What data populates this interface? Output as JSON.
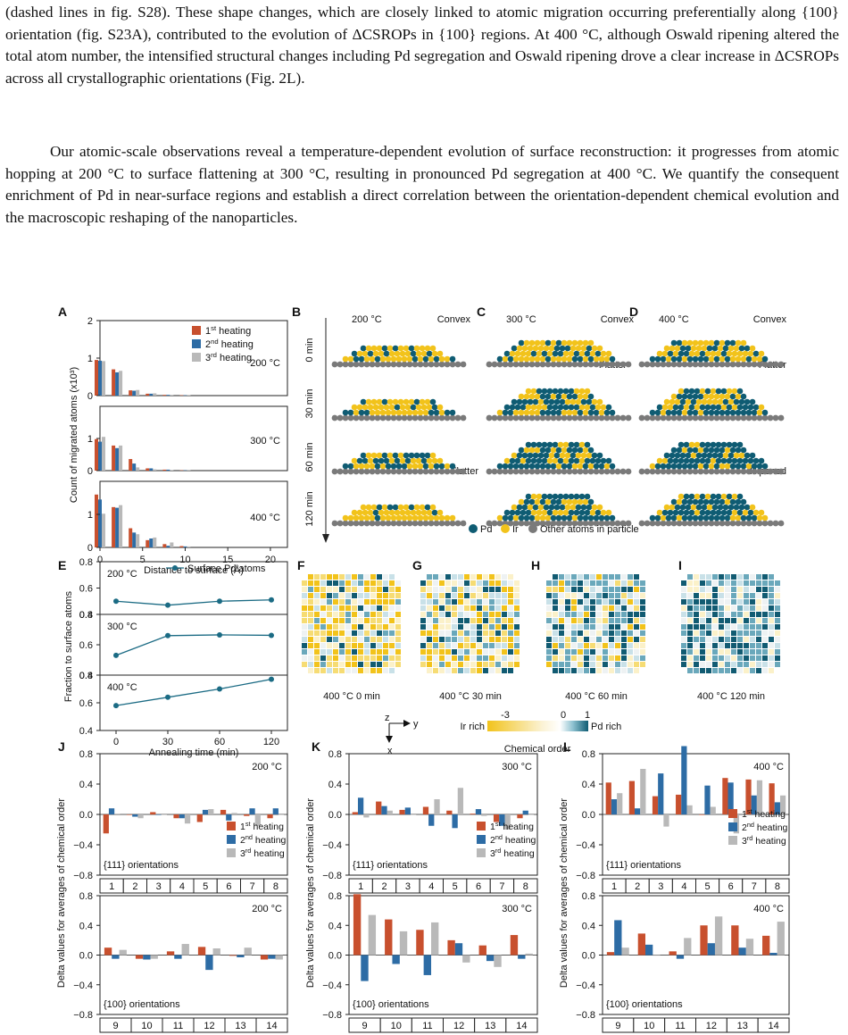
{
  "text": {
    "paragraph1": "(dashed lines in fig. S28). These shape changes, which are closely linked to atomic migration occurring preferentially along {100} orientation (fig. S23A), contributed to the evolution of ΔCSROPs in {100} regions. At 400 °C, although Oswald ripening altered the total atom number, the intensified structural changes including Pd segregation and Oswald ripening drove a clear increase in ΔCSROPs across all crystallographic orientations (Fig. 2L).",
    "paragraph2": "Our atomic-scale observations reveal a temperature-dependent evolution of surface reconstruction: it progresses from atomic hopping at 200 °C to surface flattening at 300 °C, resulting in pronounced Pd segregation at 400 °C. We quantify the consequent enrichment of Pd in near-surface regions and establish a direct correlation between the orientation-dependent chemical evolution and the macroscopic reshaping of the nanoparticles."
  },
  "colors": {
    "heat1": "#c8502e",
    "heat2": "#2d6ca5",
    "heat3": "#b9b9b9",
    "pd": "#0f5c73",
    "ir": "#f2c31b",
    "other": "#7a7a7a",
    "teal": "#1b6b84"
  },
  "chart_data": [
    {
      "panel": "A",
      "type": "bar",
      "ylabel": "Count of migrated atoms (x10³)",
      "xlabel": "Distance to surface (Å)",
      "x_ticks": [
        "0",
        "5",
        "10",
        "15",
        "20"
      ],
      "y_ticks": [
        "0",
        "1",
        "2"
      ],
      "legend": [
        "1st heating",
        "2nd heating",
        "3rd heating"
      ],
      "x": [
        0,
        2,
        4,
        6,
        8,
        10
      ],
      "subplots": [
        {
          "label": "200 °C",
          "series": [
            [
              0.95,
              0.7,
              0.14,
              0.05,
              0.02,
              0.01
            ],
            [
              0.93,
              0.62,
              0.13,
              0.05,
              0.02,
              0.01
            ],
            [
              0.92,
              0.66,
              0.15,
              0.06,
              0.02,
              0.01
            ]
          ]
        },
        {
          "label": "300 °C",
          "series": [
            [
              0.98,
              0.78,
              0.36,
              0.07,
              0.03,
              0.01
            ],
            [
              0.9,
              0.7,
              0.22,
              0.07,
              0.03,
              0.01
            ],
            [
              1.05,
              0.78,
              0.1,
              0.04,
              0.02,
              0.01
            ]
          ]
        },
        {
          "label": "400 °C",
          "series": [
            [
              1.6,
              1.22,
              0.58,
              0.22,
              0.1,
              0.04
            ],
            [
              1.45,
              1.2,
              0.45,
              0.27,
              0.05,
              0.03
            ],
            [
              1.02,
              1.28,
              0.4,
              0.3,
              0.15,
              0.03
            ]
          ]
        }
      ]
    },
    {
      "panel": "E",
      "type": "line",
      "ylabel": "Fraction to surface atoms",
      "xlabel": "Annealing time (min)",
      "legend": "Surface Pd atoms",
      "x": [
        0,
        30,
        60,
        120
      ],
      "x_ticks": [
        "0",
        "30",
        "60",
        "120"
      ],
      "subplots": [
        {
          "label": "200 °C",
          "ylim": [
            0.4,
            0.8
          ],
          "values": [
            0.5,
            0.47,
            0.5,
            0.51
          ]
        },
        {
          "label": "300 °C",
          "ylim": [
            0.4,
            0.8
          ],
          "values": [
            0.53,
            0.66,
            0.665,
            0.662
          ]
        },
        {
          "label": "400 °C",
          "ylim": [
            0.4,
            0.8
          ],
          "values": [
            0.58,
            0.64,
            0.7,
            0.77
          ]
        }
      ]
    },
    {
      "panel": "J",
      "type": "bar",
      "temp": "200 °C",
      "ylabel": "Delta values for averages of chemical order",
      "ylim": [
        -0.8,
        0.8
      ],
      "top": {
        "orientation": "{111} orientations",
        "categories": [
          "1",
          "2",
          "3",
          "4",
          "5",
          "6",
          "7",
          "8"
        ],
        "series": [
          [
            -0.25,
            0.0,
            0.03,
            -0.05,
            -0.1,
            0.06,
            -0.02,
            -0.05
          ],
          [
            0.08,
            -0.03,
            0.0,
            -0.05,
            0.06,
            -0.08,
            0.08,
            0.08
          ],
          [
            0.01,
            -0.05,
            0.0,
            -0.12,
            0.07,
            0.02,
            -0.15,
            0.0
          ]
        ]
      },
      "bottom": {
        "orientation": "{100} orientations",
        "categories": [
          "9",
          "10",
          "11",
          "12",
          "13",
          "14"
        ],
        "series": [
          [
            0.1,
            -0.05,
            0.05,
            0.11,
            -0.01,
            -0.06
          ],
          [
            -0.05,
            -0.06,
            -0.05,
            -0.2,
            -0.03,
            -0.05
          ],
          [
            0.07,
            -0.05,
            0.15,
            0.09,
            0.1,
            -0.06
          ]
        ]
      }
    },
    {
      "panel": "K",
      "type": "bar",
      "temp": "300 °C",
      "ylabel": "Delta values for averages of chemical order",
      "ylim": [
        -0.8,
        0.8
      ],
      "top": {
        "orientation": "{111} orientations",
        "categories": [
          "1",
          "2",
          "3",
          "4",
          "5",
          "6",
          "7",
          "8"
        ],
        "series": [
          [
            0.03,
            0.17,
            0.06,
            0.1,
            0.05,
            0.01,
            -0.1,
            -0.05
          ],
          [
            0.22,
            0.11,
            0.09,
            -0.15,
            -0.18,
            0.07,
            -0.15,
            0.05
          ],
          [
            -0.04,
            0.05,
            0.0,
            0.2,
            0.35,
            -0.02,
            -0.2,
            0.0
          ]
        ]
      },
      "bottom": {
        "orientation": "{100} orientations",
        "categories": [
          "9",
          "10",
          "11",
          "12",
          "13",
          "14"
        ],
        "series": [
          [
            0.82,
            0.48,
            0.34,
            0.2,
            0.13,
            0.27
          ],
          [
            -0.35,
            -0.12,
            -0.27,
            0.16,
            -0.08,
            -0.05
          ],
          [
            0.54,
            0.32,
            0.44,
            -0.1,
            -0.16,
            0.02
          ]
        ]
      }
    },
    {
      "panel": "L",
      "type": "bar",
      "temp": "400 °C",
      "ylabel": "Delta values for averages of chemical order",
      "ylim": [
        -0.8,
        0.8
      ],
      "top": {
        "orientation": "{111} orientations",
        "categories": [
          "1",
          "2",
          "3",
          "4",
          "5",
          "6",
          "7",
          "8"
        ],
        "series": [
          [
            0.42,
            0.44,
            0.24,
            0.26,
            0.0,
            0.48,
            0.46,
            0.41
          ],
          [
            0.2,
            0.08,
            0.54,
            0.9,
            0.38,
            0.42,
            0.25,
            0.16
          ],
          [
            0.28,
            0.6,
            -0.16,
            0.12,
            0.1,
            -0.25,
            0.45,
            0.25
          ]
        ]
      },
      "bottom": {
        "orientation": "{100} orientations",
        "categories": [
          "9",
          "10",
          "11",
          "12",
          "13",
          "14"
        ],
        "series": [
          [
            0.04,
            0.29,
            0.05,
            0.4,
            0.4,
            0.26
          ],
          [
            0.47,
            0.14,
            -0.05,
            0.16,
            0.1,
            0.03
          ],
          [
            0.1,
            0.0,
            0.23,
            0.52,
            0.22,
            0.45
          ]
        ]
      }
    }
  ],
  "labels": {
    "panels": [
      "A",
      "B",
      "C",
      "D",
      "E",
      "F",
      "G",
      "H",
      "I",
      "J",
      "K",
      "L"
    ],
    "temps": [
      "200 °C",
      "300 °C",
      "400 °C"
    ],
    "shape_labels": {
      "convex": "Convex",
      "flatter": "Flatter",
      "ripened": "Ripened"
    },
    "times": [
      "0 min",
      "30 min",
      "60 min",
      "120 min"
    ],
    "atom_legend": [
      "Pd",
      "Ir",
      "Other atoms in particle"
    ],
    "maps": [
      "400 °C 0 min",
      "400 °C 30 min",
      "400 °C 60 min",
      "400 °C 120 min"
    ],
    "axis_z": "z",
    "axis_y": "y",
    "axis_x": "x",
    "colorbar": {
      "min": "-3",
      "mid": "0",
      "max": "1",
      "left": "Ir rich",
      "right": "Pd rich",
      "title": "Chemical order"
    }
  }
}
